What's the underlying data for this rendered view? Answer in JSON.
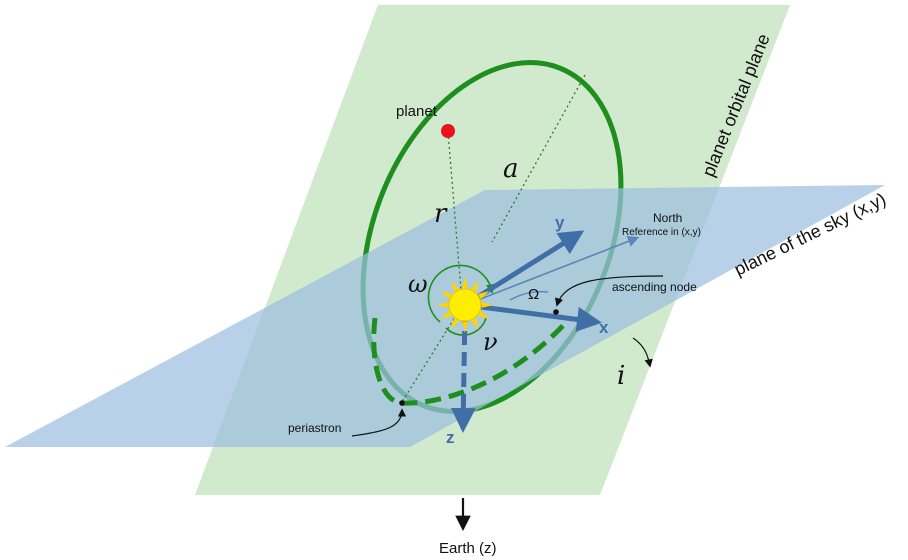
{
  "labels": {
    "planet": "planet",
    "semi_major_axis": "a",
    "radius": "r",
    "omega": "ω",
    "nu": "ν",
    "Omega": "Ω",
    "inclination": "i",
    "north": "North",
    "reference": "Reference in (x,y)",
    "ascending_node": "ascending node",
    "periastron": "periastron",
    "axis_x": "x",
    "axis_y": "y",
    "axis_z": "z",
    "orbital_plane": "planet orbital plane",
    "sky_plane": "plane of the sky (x,y)",
    "earth": "Earth (z)"
  },
  "colors": {
    "orbital_plane": "#cfe8c9",
    "sky_plane": "#9dbfe0",
    "orbit": "#1e8f1e",
    "axes": "#3f6fa6",
    "planet": "#e8141a",
    "star": "#ffee00",
    "star_rays": "#ffd400"
  }
}
